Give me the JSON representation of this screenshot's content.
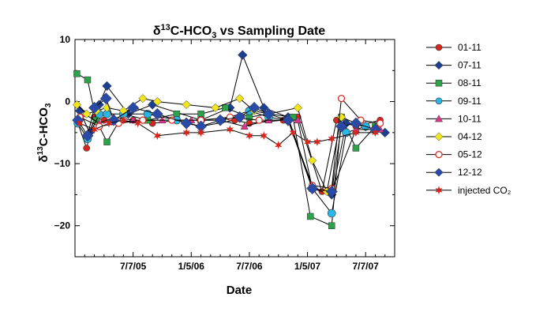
{
  "chart_data": {
    "type": "line",
    "title_prefix": "δ",
    "title_sup": "13",
    "title_mid": "C-HCO",
    "title_sub": "3",
    "title_suffix": " vs Sampling Date",
    "xlabel": "Date",
    "ylabel_prefix": "δ",
    "ylabel_sup": "13",
    "ylabel_mid": "C-HCO",
    "ylabel_sub": "3",
    "xlim": [
      0,
      33
    ],
    "ylim": [
      -25,
      10
    ],
    "x_ticks": [
      {
        "x": 6,
        "label": "7/7/05"
      },
      {
        "x": 12,
        "label": "1/5/06"
      },
      {
        "x": 18,
        "label": "7/7/06"
      },
      {
        "x": 24,
        "label": "1/5/07"
      },
      {
        "x": 30,
        "label": "7/7/07"
      }
    ],
    "y_ticks": [
      10,
      0,
      -10,
      -20
    ],
    "grid": false,
    "legend_position": "right",
    "series": [
      {
        "name": "01-11",
        "color": "#d7261e",
        "marker": "circle-filled",
        "x": [
          0.3,
          1.2,
          2.0,
          3.0,
          4.5,
          6.0,
          8.0,
          10.5,
          13.0,
          16.5,
          18.0,
          21.5,
          23.0,
          25.5,
          27.0,
          29.0,
          31.5
        ],
        "y": [
          -3.5,
          -7.5,
          -2.5,
          -3.0,
          -3.5,
          -3.0,
          -3.5,
          -3.0,
          -4.0,
          -3.0,
          -3.5,
          -3.0,
          -2.5,
          -14.5,
          -3.0,
          -4.0,
          -3.0
        ]
      },
      {
        "name": "07-11",
        "color": "#1c3f8f",
        "marker": "diamond-filled",
        "x": [
          0.5,
          1.5,
          2.5,
          3.3,
          5.5,
          8.0,
          13.0,
          16.0,
          17.3,
          19.5,
          22.0,
          24.5,
          26.5,
          28.0,
          30.0,
          32.0
        ],
        "y": [
          -1.5,
          -5.0,
          -0.5,
          2.5,
          -2.0,
          -0.5,
          -3.0,
          -1.0,
          7.5,
          -1.0,
          -2.5,
          -14.0,
          -15.0,
          -3.5,
          -4.0,
          -5.0
        ]
      },
      {
        "name": "08-11",
        "color": "#2ca24a",
        "marker": "square-filled",
        "x": [
          0.2,
          1.3,
          2.2,
          3.3,
          5.0,
          7.5,
          10.5,
          13.0,
          15.5,
          18.0,
          20.0,
          22.5,
          24.3,
          26.5,
          27.5,
          29.0,
          31.0
        ],
        "y": [
          4.5,
          3.5,
          -3.0,
          -6.5,
          -2.0,
          -3.0,
          -2.0,
          -2.0,
          -1.0,
          -2.5,
          -2.0,
          -2.5,
          -18.5,
          -20.0,
          -2.5,
          -7.5,
          -4.0
        ]
      },
      {
        "name": "09-11",
        "color": "#29b6e8",
        "marker": "circle-filled",
        "x": [
          0.3,
          1.3,
          2.5,
          3.3,
          5.0,
          7.5,
          10.5,
          13.0,
          15.0,
          18.0,
          20.0,
          22.0,
          24.5,
          26.5,
          28.0,
          30.0,
          31.0
        ],
        "y": [
          -3.5,
          -6.0,
          -2.0,
          -2.0,
          -2.0,
          -2.0,
          -3.0,
          -3.0,
          -3.0,
          -1.5,
          -2.5,
          -3.0,
          -14.0,
          -18.0,
          -5.0,
          -4.0,
          -4.5
        ]
      },
      {
        "name": "10-11",
        "color": "#e0338e",
        "marker": "triangle-filled",
        "x": [
          1.0,
          2.5,
          4.0,
          6.0,
          9.0,
          12.0,
          15.0,
          17.5,
          20.0,
          23.0,
          24.5,
          26.5,
          29.0,
          31.5
        ],
        "y": [
          -2.0,
          -3.5,
          -2.5,
          -3.0,
          -3.0,
          -3.0,
          -3.0,
          -4.0,
          -3.0,
          -3.0,
          -14.0,
          -14.5,
          -4.5,
          -4.5
        ]
      },
      {
        "name": "04-12",
        "color": "#f1e61c",
        "marker": "diamond-filled",
        "x": [
          0.2,
          1.2,
          2.2,
          3.3,
          5.0,
          7.0,
          8.5,
          11.5,
          14.5,
          17.0,
          18.5,
          20.0,
          23.0,
          24.5,
          26.0,
          27.5,
          29.0
        ],
        "y": [
          -0.5,
          -2.0,
          -1.5,
          -1.0,
          -1.5,
          0.5,
          0.0,
          -0.5,
          -1.0,
          0.5,
          -1.5,
          -2.0,
          -1.0,
          -9.5,
          -14.5,
          -2.5,
          -3.5
        ]
      },
      {
        "name": "05-12",
        "color": "#d7261e",
        "marker": "circle-open",
        "x": [
          0.5,
          2.5,
          4.5,
          7.0,
          10.0,
          13.0,
          16.0,
          19.0,
          22.0,
          24.5,
          26.5,
          27.5,
          29.5,
          31.5
        ],
        "y": [
          -2.5,
          -4.0,
          -3.5,
          -3.0,
          -3.0,
          -3.0,
          -2.5,
          -3.0,
          -3.0,
          -13.5,
          -14.0,
          0.5,
          -3.0,
          -3.5
        ]
      },
      {
        "name": "12-12",
        "color": "#2a4aa8",
        "marker": "diamond-filled",
        "x": [
          0.3,
          1.3,
          2.0,
          3.2,
          4.0,
          6.0,
          8.5,
          11.5,
          13.0,
          15.0,
          17.0,
          18.5,
          20.0,
          22.0,
          24.5,
          26.5,
          27.5,
          29.0,
          31.0
        ],
        "y": [
          -3.0,
          -5.5,
          -1.0,
          0.5,
          -3.0,
          -1.0,
          -2.0,
          -3.5,
          -4.0,
          -3.0,
          -2.5,
          -1.0,
          -2.0,
          -3.0,
          -14.0,
          -14.5,
          -4.0,
          -3.5,
          -4.5
        ]
      },
      {
        "name": "injected CO₂",
        "color": "#d7261e",
        "marker": "star",
        "x": [
          0.5,
          2.0,
          3.5,
          5.0,
          6.5,
          8.5,
          11.5,
          13.0,
          16.0,
          18.0,
          19.5,
          21.0,
          22.5,
          24.0,
          25.0,
          26.5,
          29.0,
          31.0
        ],
        "y": [
          -3.5,
          -4.5,
          -3.5,
          -3.0,
          -3.5,
          -5.5,
          -5.0,
          -5.0,
          -4.5,
          -5.5,
          -5.5,
          -7.0,
          -5.0,
          -6.5,
          -6.5,
          -6.0,
          -5.0,
          -5.0
        ]
      }
    ]
  }
}
